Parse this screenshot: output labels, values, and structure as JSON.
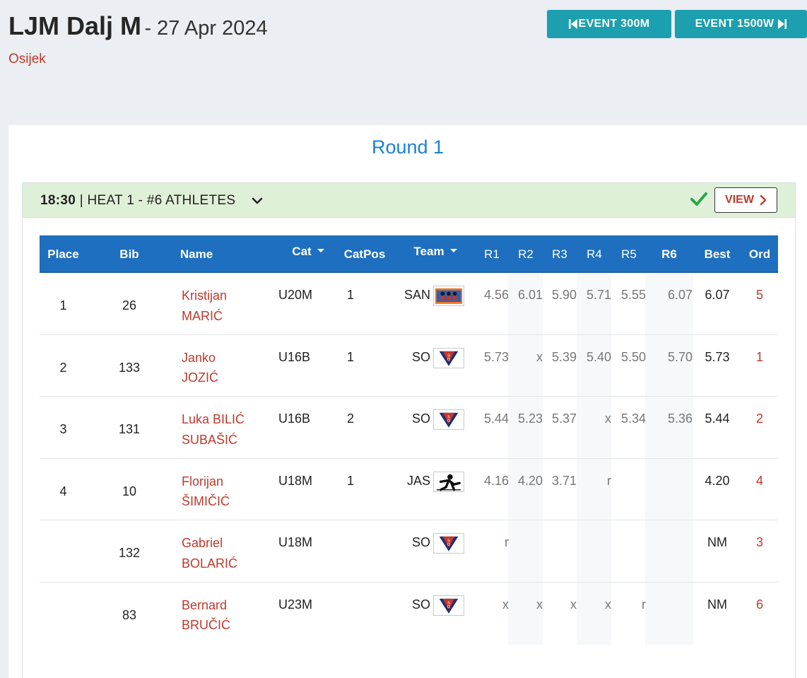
{
  "header": {
    "event_name": "LJM Dalj M",
    "date": "- 27 Apr 2024",
    "location": "Osijek",
    "prev_button": "EVENT 300M",
    "next_button": "EVENT 1500W"
  },
  "round": {
    "title": "Round 1"
  },
  "heat": {
    "time": "18:30",
    "label": " | HEAT 1 - #6 ATHLETES",
    "status_icon": "check-icon",
    "status_color": "#28a745",
    "view_label": "VIEW"
  },
  "colors": {
    "table_header": "#1e6fbf",
    "accent_red": "#c0392b",
    "nav_teal": "#1c9fae",
    "round_blue": "#1a80d9",
    "heat_bar": "#dff0d8"
  },
  "table": {
    "columns": {
      "place": "Place",
      "bib": "Bib",
      "name": "Name",
      "cat": "Cat",
      "catpos": "CatPos",
      "team": "Team",
      "r1": "R1",
      "r2": "R2",
      "r3": "R3",
      "r4": "R4",
      "r5": "R5",
      "r6": "R6",
      "best": "Best",
      "ord": "Ord"
    },
    "rows": [
      {
        "place": "1",
        "bib": "26",
        "first": "Kristijan",
        "last": "MARIĆ",
        "cat": "U20M",
        "catpos": "1",
        "team": "SAN",
        "logo": "san-logo",
        "r1": "4.56",
        "r2": "6.01",
        "r3": "5.90",
        "r4": "5.71",
        "r5": "5.55",
        "r6": "6.07",
        "best": "6.07",
        "ord": "5"
      },
      {
        "place": "2",
        "bib": "133",
        "first": "Janko",
        "last": "JOZIĆ",
        "cat": "U16B",
        "catpos": "1",
        "team": "SO",
        "logo": "so-logo",
        "r1": "5.73",
        "r2": "x",
        "r3": "5.39",
        "r4": "5.40",
        "r5": "5.50",
        "r6": "5.70",
        "best": "5.73",
        "ord": "1"
      },
      {
        "place": "3",
        "bib": "131",
        "first": "Luka BILIĆ",
        "last": "SUBAŠIĆ",
        "cat": "U16B",
        "catpos": "2",
        "team": "SO",
        "logo": "so-logo",
        "r1": "5.44",
        "r2": "5.23",
        "r3": "5.37",
        "r4": "x",
        "r5": "5.34",
        "r6": "5.36",
        "best": "5.44",
        "ord": "2"
      },
      {
        "place": "4",
        "bib": "10",
        "first": "Florijan",
        "last": "ŠIMIČIĆ",
        "cat": "U18M",
        "catpos": "1",
        "team": "JAS",
        "logo": "jas-logo",
        "r1": "4.16",
        "r2": "4.20",
        "r3": "3.71",
        "r4": "r",
        "r5": "",
        "r6": "",
        "best": "4.20",
        "ord": "4"
      },
      {
        "place": "",
        "bib": "132",
        "first": "Gabriel",
        "last": "BOLARIĆ",
        "cat": "U18M",
        "catpos": "",
        "team": "SO",
        "logo": "so-logo",
        "r1": "r",
        "r2": "",
        "r3": "",
        "r4": "",
        "r5": "",
        "r6": "",
        "best": "NM",
        "ord": "3"
      },
      {
        "place": "",
        "bib": "83",
        "first": "Bernard",
        "last": "BRUČIĆ",
        "cat": "U23M",
        "catpos": "",
        "team": "SO",
        "logo": "so-logo",
        "r1": "x",
        "r2": "x",
        "r3": "x",
        "r4": "x",
        "r5": "r",
        "r6": "",
        "best": "NM",
        "ord": "6"
      }
    ]
  }
}
